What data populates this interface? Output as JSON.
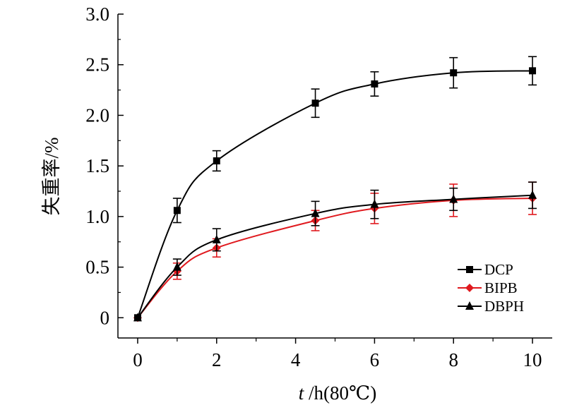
{
  "chart_data": {
    "type": "line",
    "x": [
      0,
      1,
      2,
      4.5,
      6,
      8,
      10
    ],
    "xlabel": "t /h(80℃)",
    "xlabel_italic": "t",
    "xlabel_rest": " /h(80℃)",
    "ylabel": "失重率/%",
    "xlim": [
      -0.5,
      10.5
    ],
    "ylim": [
      -0.2,
      3.0
    ],
    "xticks": [
      0,
      2,
      4,
      6,
      8,
      10
    ],
    "xtick_labels": [
      "0",
      "2",
      "4",
      "6",
      "8",
      "10"
    ],
    "yticks": [
      0,
      0.5,
      1.0,
      1.5,
      2.0,
      2.5,
      3.0
    ],
    "ytick_labels": [
      "0",
      "0.5",
      "1.0",
      "1.5",
      "2.0",
      "2.5",
      "3.0"
    ],
    "grid": false,
    "legend_position": "bottom-right",
    "series": [
      {
        "name": "DCP",
        "marker": "square",
        "color": "#000000",
        "values": [
          0,
          1.06,
          1.55,
          2.12,
          2.31,
          2.42,
          2.44
        ],
        "errors": [
          0,
          0.12,
          0.1,
          0.14,
          0.12,
          0.15,
          0.14
        ]
      },
      {
        "name": "BIPB",
        "marker": "diamond",
        "color": "#e0191e",
        "values": [
          0,
          0.46,
          0.69,
          0.96,
          1.08,
          1.16,
          1.18
        ],
        "errors": [
          0,
          0.08,
          0.09,
          0.1,
          0.15,
          0.16,
          0.16
        ]
      },
      {
        "name": "DBPH",
        "marker": "triangle",
        "color": "#000000",
        "values": [
          0,
          0.5,
          0.77,
          1.03,
          1.12,
          1.17,
          1.21
        ],
        "errors": [
          0,
          0.08,
          0.11,
          0.12,
          0.14,
          0.11,
          0.13
        ]
      }
    ]
  }
}
